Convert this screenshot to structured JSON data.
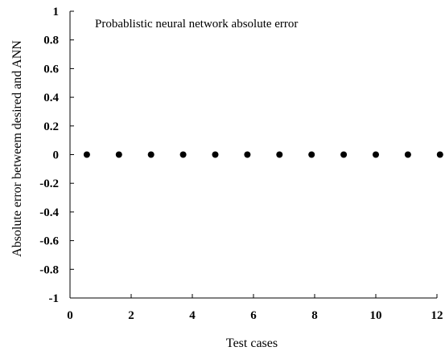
{
  "chart_data": {
    "type": "scatter",
    "title": "Probablistic neural network absolute error",
    "xlabel": "Test cases",
    "ylabel": "Absolute error betweem desired and ANN",
    "xlim": [
      0,
      12
    ],
    "ylim": [
      -1,
      1
    ],
    "x_ticks": [
      "0",
      "2",
      "4",
      "6",
      "8",
      "10",
      "12"
    ],
    "y_ticks": [
      "1",
      "0.8",
      "0.6",
      "0.4",
      "0.2",
      "0",
      "-0.2",
      "-0.4",
      "-0.6",
      "-0.8",
      "-1"
    ],
    "grid": false,
    "series": [
      {
        "x": [
          0.55,
          1.6,
          2.65,
          3.7,
          4.75,
          5.8,
          6.85,
          7.9,
          8.95,
          10.0,
          11.05,
          12.1
        ],
        "y": [
          0,
          0,
          0,
          0,
          0,
          0,
          0,
          0,
          0,
          0,
          0,
          0
        ]
      }
    ]
  }
}
